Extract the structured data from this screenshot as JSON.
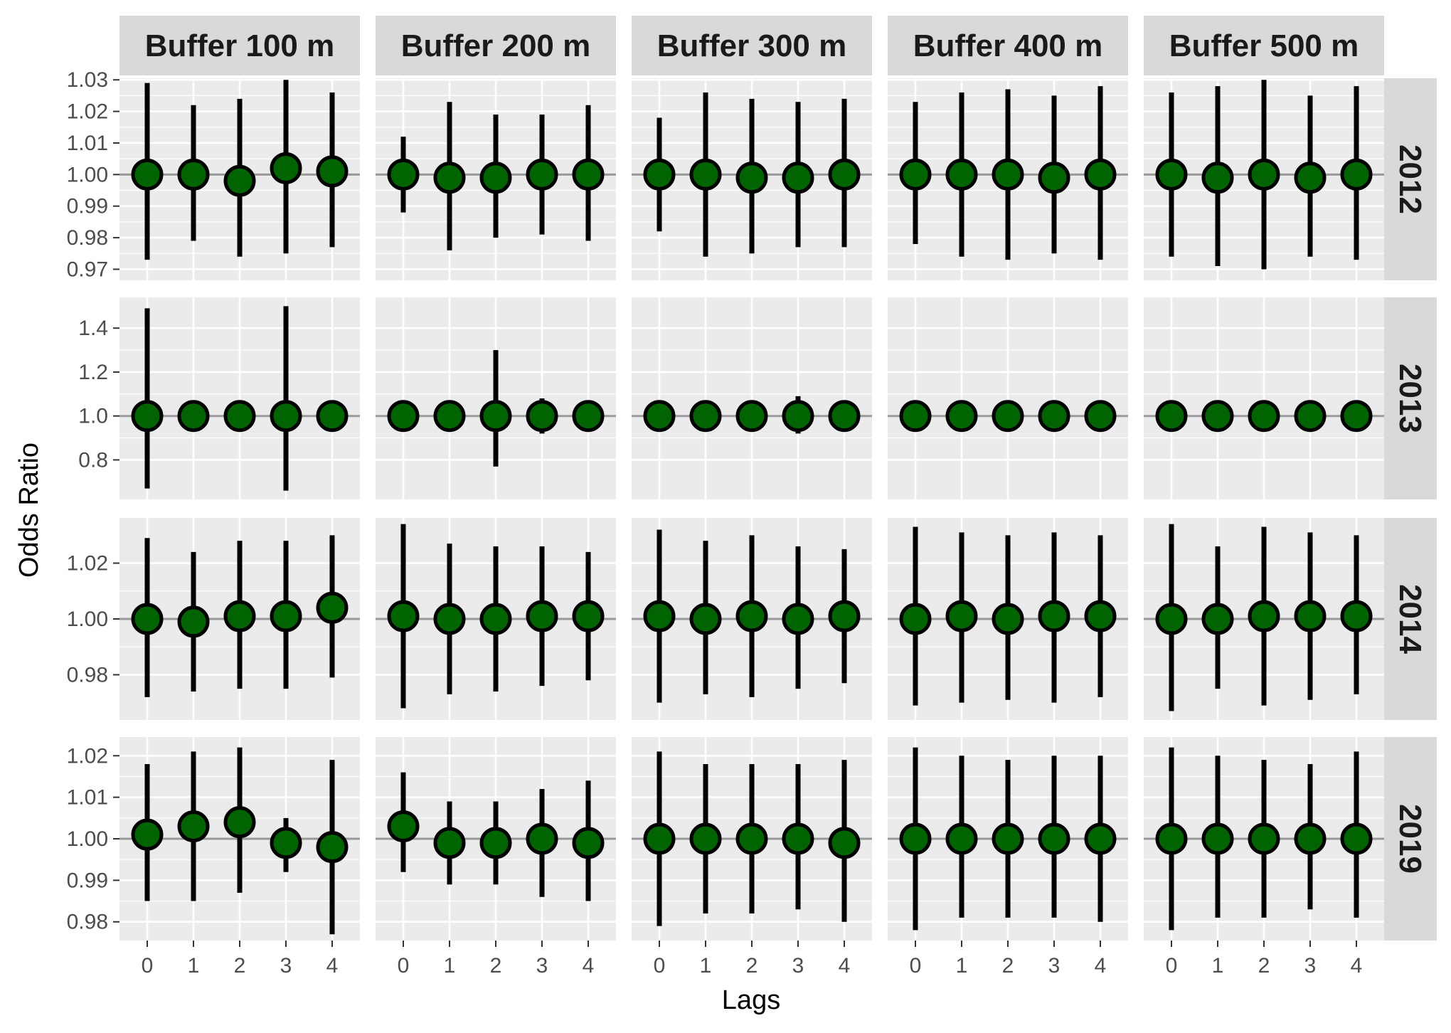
{
  "chart_data": {
    "type": "scatter",
    "subtype": "point-range (odds ratio with 95% confidence interval), faceted grid",
    "title": "",
    "xlabel": "Lags",
    "ylabel": "Odds Ratio",
    "x_categories": [
      "0",
      "1",
      "2",
      "3",
      "4"
    ],
    "columns": [
      "Buffer 100 m",
      "Buffer 200 m",
      "Buffer 300 m",
      "Buffer 400 m",
      "Buffer 500 m"
    ],
    "reference_line": 1.0,
    "point_fill": "#006400",
    "point_stroke": "#000000",
    "ci_color": "#000000",
    "panel_background": "#ebebeb",
    "strip_background": "#d9d9d9",
    "rows": [
      {
        "label": "2012",
        "ylim": [
          0.9665,
          1.0305
        ],
        "yticks": [
          0.97,
          0.98,
          0.99,
          1.0,
          1.01,
          1.02,
          1.03
        ],
        "ytick_labels": [
          "0.97",
          "0.98",
          "0.99",
          "1.00",
          "1.01",
          "1.02",
          "1.03"
        ],
        "panels": [
          {
            "points": [
              {
                "lag": 0,
                "or": 1.0,
                "lower": 0.973,
                "upper": 1.029
              },
              {
                "lag": 1,
                "or": 1.0,
                "lower": 0.979,
                "upper": 1.022
              },
              {
                "lag": 2,
                "or": 0.998,
                "lower": 0.974,
                "upper": 1.024
              },
              {
                "lag": 3,
                "or": 1.002,
                "lower": 0.975,
                "upper": 1.03
              },
              {
                "lag": 4,
                "or": 1.001,
                "lower": 0.977,
                "upper": 1.026
              }
            ]
          },
          {
            "points": [
              {
                "lag": 0,
                "or": 1.0,
                "lower": 0.988,
                "upper": 1.012
              },
              {
                "lag": 1,
                "or": 0.999,
                "lower": 0.976,
                "upper": 1.023
              },
              {
                "lag": 2,
                "or": 0.999,
                "lower": 0.98,
                "upper": 1.019
              },
              {
                "lag": 3,
                "or": 1.0,
                "lower": 0.981,
                "upper": 1.019
              },
              {
                "lag": 4,
                "or": 1.0,
                "lower": 0.979,
                "upper": 1.022
              }
            ]
          },
          {
            "points": [
              {
                "lag": 0,
                "or": 1.0,
                "lower": 0.982,
                "upper": 1.018
              },
              {
                "lag": 1,
                "or": 1.0,
                "lower": 0.974,
                "upper": 1.026
              },
              {
                "lag": 2,
                "or": 0.999,
                "lower": 0.975,
                "upper": 1.024
              },
              {
                "lag": 3,
                "or": 0.999,
                "lower": 0.977,
                "upper": 1.023
              },
              {
                "lag": 4,
                "or": 1.0,
                "lower": 0.977,
                "upper": 1.024
              }
            ]
          },
          {
            "points": [
              {
                "lag": 0,
                "or": 1.0,
                "lower": 0.978,
                "upper": 1.023
              },
              {
                "lag": 1,
                "or": 1.0,
                "lower": 0.974,
                "upper": 1.026
              },
              {
                "lag": 2,
                "or": 1.0,
                "lower": 0.973,
                "upper": 1.027
              },
              {
                "lag": 3,
                "or": 0.999,
                "lower": 0.975,
                "upper": 1.025
              },
              {
                "lag": 4,
                "or": 1.0,
                "lower": 0.973,
                "upper": 1.028
              }
            ]
          },
          {
            "points": [
              {
                "lag": 0,
                "or": 1.0,
                "lower": 0.974,
                "upper": 1.026
              },
              {
                "lag": 1,
                "or": 0.999,
                "lower": 0.971,
                "upper": 1.028
              },
              {
                "lag": 2,
                "or": 1.0,
                "lower": 0.97,
                "upper": 1.03
              },
              {
                "lag": 3,
                "or": 0.999,
                "lower": 0.974,
                "upper": 1.025
              },
              {
                "lag": 4,
                "or": 1.0,
                "lower": 0.973,
                "upper": 1.028
              }
            ]
          }
        ]
      },
      {
        "label": "2013",
        "ylim": [
          0.62,
          1.54
        ],
        "yticks": [
          0.8,
          1.0,
          1.2,
          1.4
        ],
        "ytick_labels": [
          "0.8",
          "1.0",
          "1.2",
          "1.4"
        ],
        "panels": [
          {
            "points": [
              {
                "lag": 0,
                "or": 1.0,
                "lower": 0.67,
                "upper": 1.49
              },
              {
                "lag": 1,
                "or": 1.0,
                "lower": 0.99,
                "upper": 1.01
              },
              {
                "lag": 2,
                "or": 1.0,
                "lower": 0.99,
                "upper": 1.01
              },
              {
                "lag": 3,
                "or": 1.0,
                "lower": 0.66,
                "upper": 1.5
              },
              {
                "lag": 4,
                "or": 1.0,
                "lower": 0.99,
                "upper": 1.01
              }
            ]
          },
          {
            "points": [
              {
                "lag": 0,
                "or": 1.0,
                "lower": 0.99,
                "upper": 1.01
              },
              {
                "lag": 1,
                "or": 1.0,
                "lower": 0.99,
                "upper": 1.01
              },
              {
                "lag": 2,
                "or": 1.0,
                "lower": 0.77,
                "upper": 1.3
              },
              {
                "lag": 3,
                "or": 1.0,
                "lower": 0.92,
                "upper": 1.08
              },
              {
                "lag": 4,
                "or": 1.0,
                "lower": 0.99,
                "upper": 1.01
              }
            ]
          },
          {
            "points": [
              {
                "lag": 0,
                "or": 1.0,
                "lower": 0.99,
                "upper": 1.01
              },
              {
                "lag": 1,
                "or": 1.0,
                "lower": 0.99,
                "upper": 1.01
              },
              {
                "lag": 2,
                "or": 1.0,
                "lower": 0.99,
                "upper": 1.01
              },
              {
                "lag": 3,
                "or": 1.0,
                "lower": 0.92,
                "upper": 1.09
              },
              {
                "lag": 4,
                "or": 1.0,
                "lower": 0.99,
                "upper": 1.01
              }
            ]
          },
          {
            "points": [
              {
                "lag": 0,
                "or": 1.0,
                "lower": 0.99,
                "upper": 1.01
              },
              {
                "lag": 1,
                "or": 1.0,
                "lower": 0.99,
                "upper": 1.01
              },
              {
                "lag": 2,
                "or": 1.0,
                "lower": 0.99,
                "upper": 1.01
              },
              {
                "lag": 3,
                "or": 1.0,
                "lower": 0.99,
                "upper": 1.01
              },
              {
                "lag": 4,
                "or": 1.0,
                "lower": 0.99,
                "upper": 1.01
              }
            ]
          },
          {
            "points": [
              {
                "lag": 0,
                "or": 1.0,
                "lower": 0.99,
                "upper": 1.01
              },
              {
                "lag": 1,
                "or": 1.0,
                "lower": 0.99,
                "upper": 1.01
              },
              {
                "lag": 2,
                "or": 1.0,
                "lower": 0.99,
                "upper": 1.01
              },
              {
                "lag": 3,
                "or": 1.0,
                "lower": 0.99,
                "upper": 1.01
              },
              {
                "lag": 4,
                "or": 1.0,
                "lower": 0.99,
                "upper": 1.01
              }
            ]
          }
        ]
      },
      {
        "label": "2014",
        "ylim": [
          0.9638,
          1.0362
        ],
        "yticks": [
          0.98,
          1.0,
          1.02
        ],
        "ytick_labels": [
          "0.98",
          "1.00",
          "1.02"
        ],
        "panels": [
          {
            "points": [
              {
                "lag": 0,
                "or": 1.0,
                "lower": 0.972,
                "upper": 1.029
              },
              {
                "lag": 1,
                "or": 0.999,
                "lower": 0.974,
                "upper": 1.024
              },
              {
                "lag": 2,
                "or": 1.001,
                "lower": 0.975,
                "upper": 1.028
              },
              {
                "lag": 3,
                "or": 1.001,
                "lower": 0.975,
                "upper": 1.028
              },
              {
                "lag": 4,
                "or": 1.004,
                "lower": 0.979,
                "upper": 1.03
              }
            ]
          },
          {
            "points": [
              {
                "lag": 0,
                "or": 1.001,
                "lower": 0.968,
                "upper": 1.034
              },
              {
                "lag": 1,
                "or": 1.0,
                "lower": 0.973,
                "upper": 1.027
              },
              {
                "lag": 2,
                "or": 1.0,
                "lower": 0.974,
                "upper": 1.026
              },
              {
                "lag": 3,
                "or": 1.001,
                "lower": 0.976,
                "upper": 1.026
              },
              {
                "lag": 4,
                "or": 1.001,
                "lower": 0.978,
                "upper": 1.024
              }
            ]
          },
          {
            "points": [
              {
                "lag": 0,
                "or": 1.001,
                "lower": 0.97,
                "upper": 1.032
              },
              {
                "lag": 1,
                "or": 1.0,
                "lower": 0.973,
                "upper": 1.028
              },
              {
                "lag": 2,
                "or": 1.001,
                "lower": 0.972,
                "upper": 1.03
              },
              {
                "lag": 3,
                "or": 1.0,
                "lower": 0.975,
                "upper": 1.026
              },
              {
                "lag": 4,
                "or": 1.001,
                "lower": 0.977,
                "upper": 1.025
              }
            ]
          },
          {
            "points": [
              {
                "lag": 0,
                "or": 1.0,
                "lower": 0.969,
                "upper": 1.033
              },
              {
                "lag": 1,
                "or": 1.001,
                "lower": 0.97,
                "upper": 1.031
              },
              {
                "lag": 2,
                "or": 1.0,
                "lower": 0.971,
                "upper": 1.03
              },
              {
                "lag": 3,
                "or": 1.001,
                "lower": 0.97,
                "upper": 1.031
              },
              {
                "lag": 4,
                "or": 1.001,
                "lower": 0.972,
                "upper": 1.03
              }
            ]
          },
          {
            "points": [
              {
                "lag": 0,
                "or": 1.0,
                "lower": 0.967,
                "upper": 1.034
              },
              {
                "lag": 1,
                "or": 1.0,
                "lower": 0.975,
                "upper": 1.026
              },
              {
                "lag": 2,
                "or": 1.001,
                "lower": 0.969,
                "upper": 1.033
              },
              {
                "lag": 3,
                "or": 1.001,
                "lower": 0.971,
                "upper": 1.031
              },
              {
                "lag": 4,
                "or": 1.001,
                "lower": 0.973,
                "upper": 1.03
              }
            ]
          }
        ]
      },
      {
        "label": "2019",
        "ylim": [
          0.9755,
          1.0245
        ],
        "yticks": [
          0.98,
          0.99,
          1.0,
          1.01,
          1.02
        ],
        "ytick_labels": [
          "0.98",
          "0.99",
          "1.00",
          "1.01",
          "1.02"
        ],
        "panels": [
          {
            "points": [
              {
                "lag": 0,
                "or": 1.001,
                "lower": 0.985,
                "upper": 1.018
              },
              {
                "lag": 1,
                "or": 1.003,
                "lower": 0.985,
                "upper": 1.021
              },
              {
                "lag": 2,
                "or": 1.004,
                "lower": 0.987,
                "upper": 1.022
              },
              {
                "lag": 3,
                "or": 0.999,
                "lower": 0.992,
                "upper": 1.005
              },
              {
                "lag": 4,
                "or": 0.998,
                "lower": 0.977,
                "upper": 1.019
              }
            ]
          },
          {
            "points": [
              {
                "lag": 0,
                "or": 1.003,
                "lower": 0.992,
                "upper": 1.016
              },
              {
                "lag": 1,
                "or": 0.999,
                "lower": 0.989,
                "upper": 1.009
              },
              {
                "lag": 2,
                "or": 0.999,
                "lower": 0.989,
                "upper": 1.009
              },
              {
                "lag": 3,
                "or": 1.0,
                "lower": 0.986,
                "upper": 1.012
              },
              {
                "lag": 4,
                "or": 0.999,
                "lower": 0.985,
                "upper": 1.014
              }
            ]
          },
          {
            "points": [
              {
                "lag": 0,
                "or": 1.0,
                "lower": 0.979,
                "upper": 1.021
              },
              {
                "lag": 1,
                "or": 1.0,
                "lower": 0.982,
                "upper": 1.018
              },
              {
                "lag": 2,
                "or": 1.0,
                "lower": 0.982,
                "upper": 1.018
              },
              {
                "lag": 3,
                "or": 1.0,
                "lower": 0.983,
                "upper": 1.018
              },
              {
                "lag": 4,
                "or": 0.999,
                "lower": 0.98,
                "upper": 1.019
              }
            ]
          },
          {
            "points": [
              {
                "lag": 0,
                "or": 1.0,
                "lower": 0.978,
                "upper": 1.022
              },
              {
                "lag": 1,
                "or": 1.0,
                "lower": 0.981,
                "upper": 1.02
              },
              {
                "lag": 2,
                "or": 1.0,
                "lower": 0.981,
                "upper": 1.019
              },
              {
                "lag": 3,
                "or": 1.0,
                "lower": 0.981,
                "upper": 1.02
              },
              {
                "lag": 4,
                "or": 1.0,
                "lower": 0.98,
                "upper": 1.02
              }
            ]
          },
          {
            "points": [
              {
                "lag": 0,
                "or": 1.0,
                "lower": 0.978,
                "upper": 1.022
              },
              {
                "lag": 1,
                "or": 1.0,
                "lower": 0.981,
                "upper": 1.02
              },
              {
                "lag": 2,
                "or": 1.0,
                "lower": 0.981,
                "upper": 1.019
              },
              {
                "lag": 3,
                "or": 1.0,
                "lower": 0.983,
                "upper": 1.018
              },
              {
                "lag": 4,
                "or": 1.0,
                "lower": 0.981,
                "upper": 1.021
              }
            ]
          }
        ]
      }
    ]
  }
}
